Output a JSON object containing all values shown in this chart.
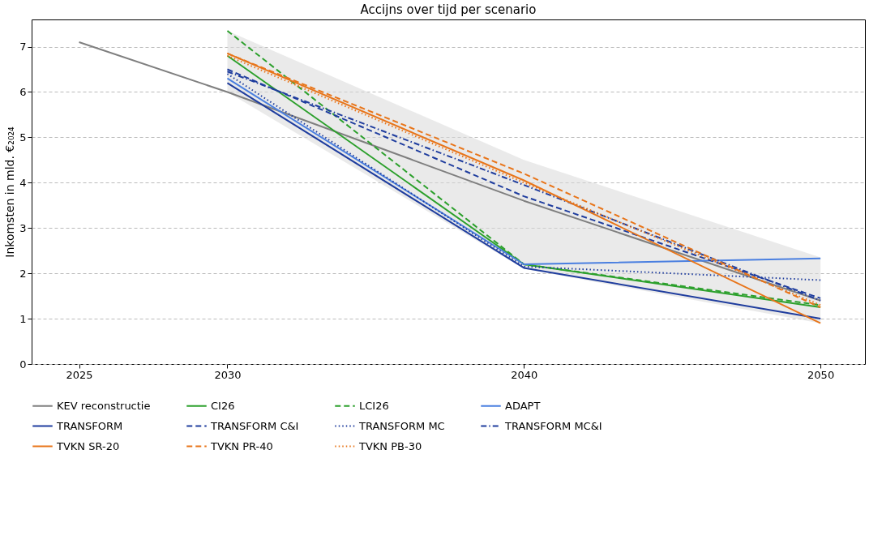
{
  "chart_data": {
    "type": "line",
    "title": "Accijns over tijd per scenario",
    "ylabel": "Inkomsten in mld. €₂₀₂₄",
    "x": [
      2030,
      2040,
      2050
    ],
    "xlim": [
      2023.4,
      2051.5
    ],
    "xticks": [
      2025,
      2030,
      2040,
      2050
    ],
    "ylim": [
      0,
      7.6
    ],
    "yticks": [
      0,
      1,
      2,
      3,
      4,
      5,
      6,
      7
    ],
    "grid": "y",
    "legend": "bottom",
    "marker": "none",
    "series": [
      {
        "name": "KEV reconstructie",
        "color": "#7f7f7f",
        "line_style": "solid",
        "x": [
          2025,
          2030,
          2040,
          2050
        ],
        "values": [
          7.1,
          6.0,
          3.6,
          1.4
        ],
        "lower": [
          null,
          6.0,
          2.1,
          0.9
        ],
        "upper": [
          null,
          7.35,
          4.5,
          2.35
        ]
      },
      {
        "name": "CI26",
        "color": "#2ca02c",
        "line_style": "solid",
        "values": [
          6.8,
          2.2,
          1.25
        ]
      },
      {
        "name": "LCI26",
        "color": "#2ca02c",
        "line_style": "dashed",
        "values": [
          7.35,
          2.2,
          1.3
        ]
      },
      {
        "name": "ADAPT",
        "color": "#4a7fe0",
        "line_style": "solid",
        "values": [
          6.3,
          2.2,
          2.33
        ]
      },
      {
        "name": "TRANSFORM",
        "color": "#1f3d9e",
        "line_style": "solid",
        "values": [
          6.2,
          2.12,
          1.0
        ]
      },
      {
        "name": "TRANSFORM C&I",
        "color": "#1f3d9e",
        "line_style": "dashed",
        "values": [
          6.5,
          3.7,
          1.45
        ]
      },
      {
        "name": "TRANSFORM MC",
        "color": "#1f3d9e",
        "line_style": "dotted",
        "values": [
          6.4,
          2.15,
          1.85
        ]
      },
      {
        "name": "TRANSFORM MC&I",
        "color": "#1f3d9e",
        "line_style": "dashdot",
        "values": [
          6.45,
          3.95,
          1.4
        ]
      },
      {
        "name": "TVKN SR-20",
        "color": "#e8751a",
        "line_style": "solid",
        "values": [
          6.85,
          4.05,
          0.9
        ]
      },
      {
        "name": "TVKN PR-40",
        "color": "#e8751a",
        "line_style": "dashed",
        "values": [
          6.85,
          4.2,
          1.25
        ]
      },
      {
        "name": "TVKN PB-30",
        "color": "#e8751a",
        "line_style": "dotted",
        "values": [
          6.8,
          4.0,
          1.3
        ]
      }
    ]
  }
}
